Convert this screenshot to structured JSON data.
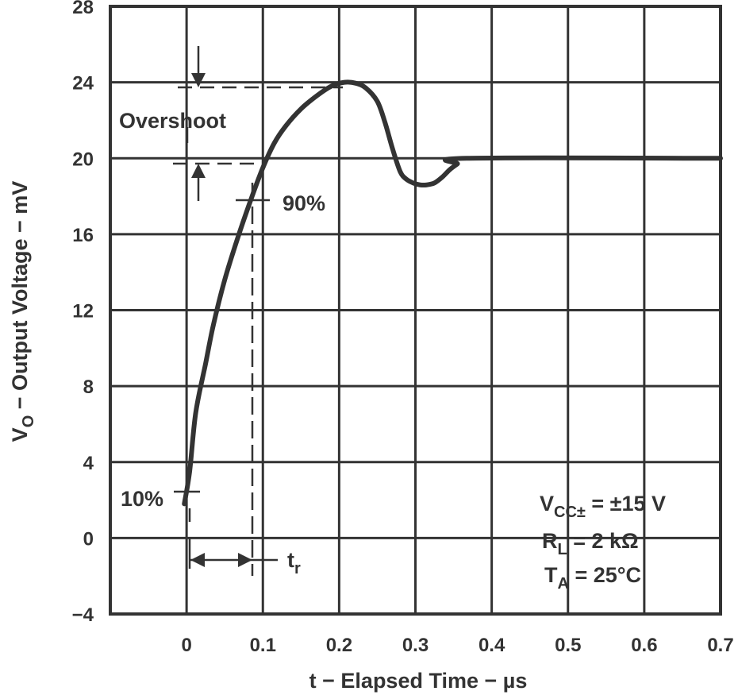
{
  "chart_data": {
    "type": "line",
    "title": "",
    "xlabel": "t − Elapsed Time − µs",
    "ylabel_main": "V",
    "ylabel_sub": "O",
    "ylabel_rest": " − Output Voltage − mV",
    "xlim": [
      -0.1,
      0.7
    ],
    "ylim": [
      -4,
      28
    ],
    "grid": true,
    "xticks": [
      0,
      0.1,
      0.2,
      0.3,
      0.4,
      0.5,
      0.6,
      0.7
    ],
    "xtick_labels": [
      "0",
      "0.1",
      "0.2",
      "0.3",
      "0.4",
      "0.5",
      "0.6",
      "0.7"
    ],
    "yticks": [
      -4,
      0,
      4,
      8,
      12,
      16,
      20,
      24,
      28
    ],
    "ytick_labels": [
      "−4",
      "0",
      "4",
      "8",
      "12",
      "16",
      "20",
      "24",
      "28"
    ],
    "series": [
      {
        "color": "#333333",
        "x": [
          -0.003,
          0.004,
          0.012,
          0.025,
          0.035,
          0.05,
          0.067,
          0.085,
          0.1,
          0.115,
          0.13,
          0.15,
          0.171,
          0.19,
          0.207,
          0.222,
          0.235,
          0.25,
          0.26,
          0.27,
          0.28,
          0.288,
          0.297,
          0.306,
          0.315,
          0.325,
          0.335,
          0.345,
          0.355,
          0.367,
          0.7
        ],
        "y": [
          1.8,
          3.5,
          6.6,
          9.2,
          11.2,
          13.6,
          15.8,
          17.9,
          19.5,
          20.8,
          21.7,
          22.6,
          23.3,
          23.8,
          24.0,
          23.95,
          23.7,
          23.0,
          21.9,
          20.5,
          19.3,
          18.9,
          18.7,
          18.6,
          18.6,
          18.7,
          19.0,
          19.4,
          19.7,
          20.0,
          20.0
        ]
      }
    ],
    "annotations": {
      "overshoot": "Overshoot",
      "ninety": "90%",
      "ten": "10%",
      "tr_main": "t",
      "tr_sub": "r"
    },
    "conditions": [
      {
        "main": "V",
        "sub": "CC±",
        "rest": " = ±15 V"
      },
      {
        "main": "R",
        "sub": "L",
        "rest": " =  2 kΩ"
      },
      {
        "main": "T",
        "sub": "A",
        "rest": " = 25°C"
      }
    ]
  }
}
